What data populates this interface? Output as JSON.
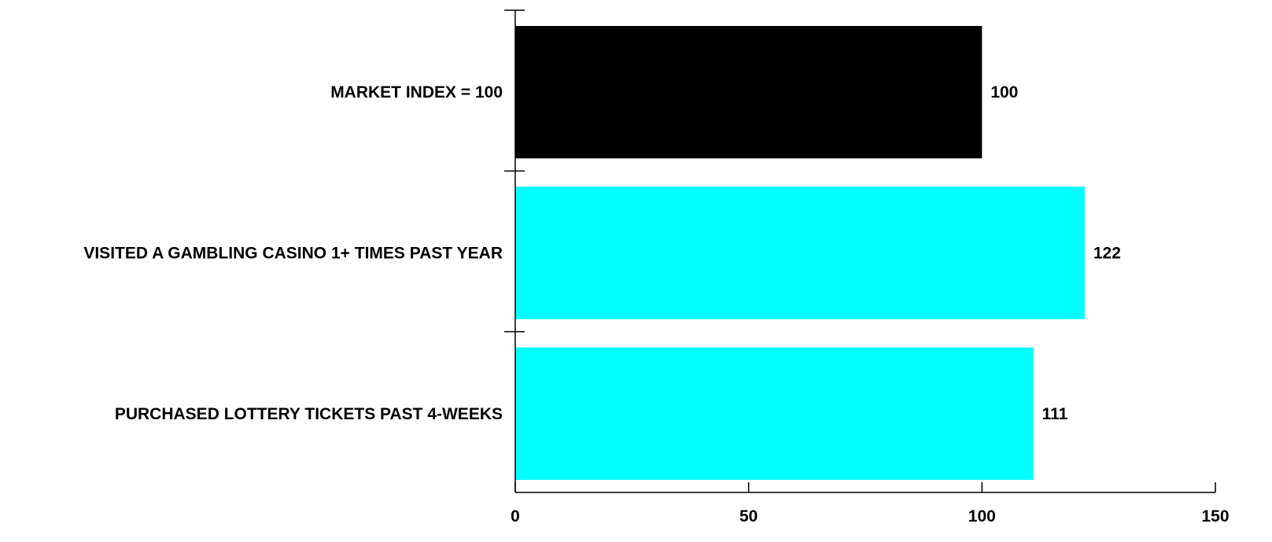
{
  "chart_data": {
    "type": "bar",
    "orientation": "horizontal",
    "categories": [
      "MARKET INDEX = 100",
      "VISITED A GAMBLING CASINO 1+ TIMES PAST YEAR",
      "PURCHASED LOTTERY TICKETS PAST 4-WEEKS"
    ],
    "values": [
      100,
      122,
      111
    ],
    "data_labels": [
      "100",
      "122",
      "111"
    ],
    "bar_colors": [
      "#000000",
      "#00FFFF",
      "#00FFFF"
    ],
    "xlim": [
      0,
      150
    ],
    "x_ticks": [
      0,
      50,
      100,
      150
    ],
    "x_tick_labels": [
      "0",
      "50",
      "100",
      "150"
    ],
    "grid": false,
    "legend": "none",
    "title": "",
    "xlabel": "",
    "ylabel": ""
  }
}
